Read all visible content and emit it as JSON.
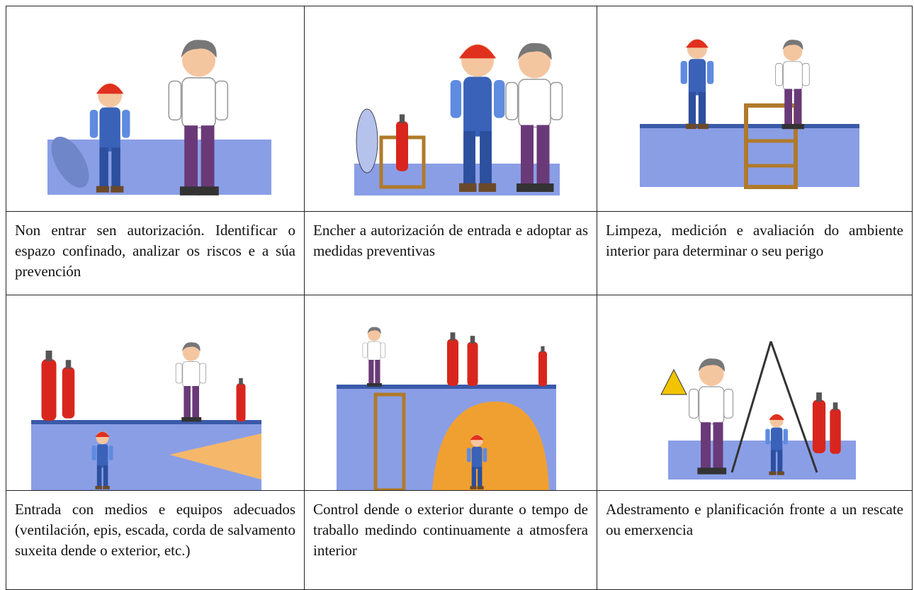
{
  "table": {
    "rows": [
      [
        "Non entrar sen autorización. Identificar o espazo confinado, analizar os riscos e a súa prevención",
        "Encher a autorización de entrada e adoptar as medidas preventivas",
        "Limpeza, medición e avaliación do ambiente interior para determinar o seu perigo"
      ],
      [
        "Entrada con medios e equipos adecuados (ventilación, epis, escada, corda de salvamento suxeita dende o exterior, etc.)",
        "Control dende o exterior durante o tempo de traballo medindo continuamente a atmosfera interior",
        "Adestramento e planificación fronte a un rescate ou emerxencia"
      ]
    ]
  }
}
